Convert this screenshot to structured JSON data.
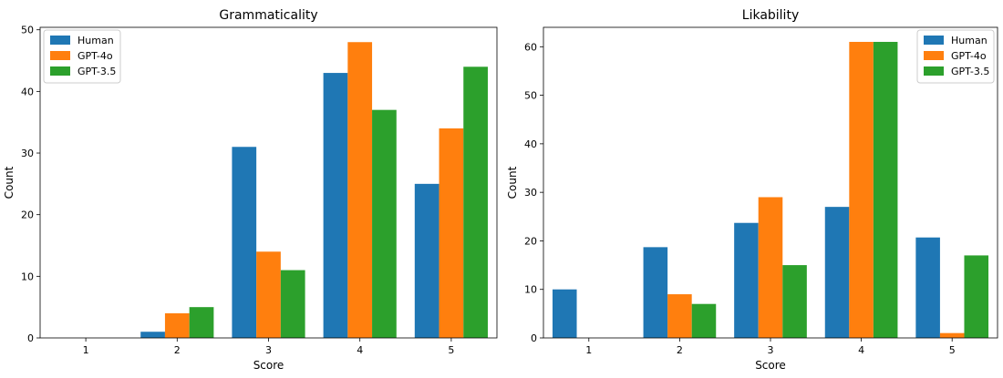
{
  "colors": {
    "Human": "#1f77b4",
    "GPT-4o": "#ff7f0e",
    "GPT-3.5": "#2ca02c"
  },
  "chart_data": [
    {
      "type": "bar",
      "title": "Grammaticality",
      "xlabel": "Score",
      "ylabel": "Count",
      "categories": [
        "1",
        "2",
        "3",
        "4",
        "5"
      ],
      "yticks": [
        0,
        10,
        20,
        30,
        40,
        50
      ],
      "ylim": [
        0,
        50.4
      ],
      "legend_position": "upper-left",
      "grid": false,
      "series": [
        {
          "name": "Human",
          "values": [
            0,
            1,
            31,
            43,
            25
          ]
        },
        {
          "name": "GPT-4o",
          "values": [
            0,
            4,
            14,
            48,
            34
          ]
        },
        {
          "name": "GPT-3.5",
          "values": [
            0,
            5,
            11,
            37,
            44
          ]
        }
      ]
    },
    {
      "type": "bar",
      "title": "Likability",
      "xlabel": "Score",
      "ylabel": "Count",
      "categories": [
        "1",
        "2",
        "3",
        "4",
        "5"
      ],
      "yticks": [
        0,
        10,
        20,
        30,
        40,
        50,
        60
      ],
      "ylim": [
        0,
        64
      ],
      "legend_position": "upper-right",
      "grid": false,
      "series": [
        {
          "name": "Human",
          "values": [
            10,
            18.7,
            23.7,
            27,
            20.7
          ]
        },
        {
          "name": "GPT-4o",
          "values": [
            0,
            9,
            29,
            61,
            1
          ]
        },
        {
          "name": "GPT-3.5",
          "values": [
            0,
            7,
            15,
            61,
            17
          ]
        }
      ]
    }
  ]
}
